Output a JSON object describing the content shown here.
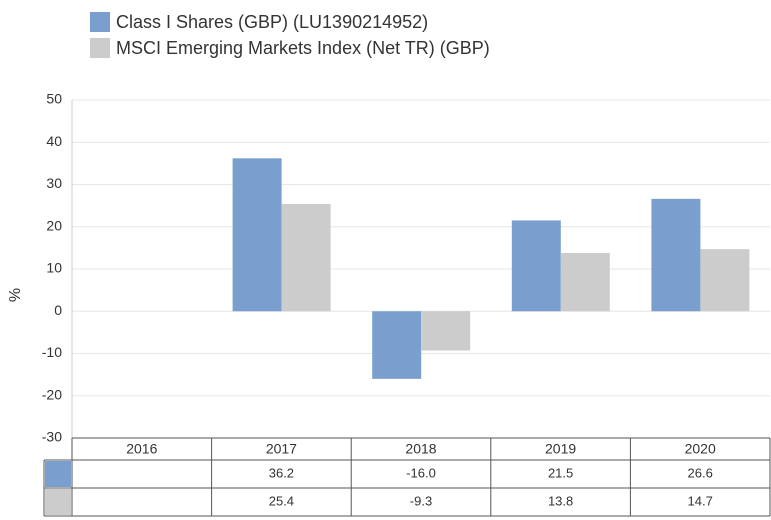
{
  "chart_data": {
    "type": "bar",
    "categories": [
      "2016",
      "2017",
      "2018",
      "2019",
      "2020"
    ],
    "series": [
      {
        "name": "Class I Shares (GBP) (LU1390214952)",
        "color": "#7a9fce",
        "values": [
          null,
          36.2,
          -16.0,
          21.5,
          26.6
        ],
        "value_labels": [
          null,
          "36.2",
          "-16.0",
          "21.5",
          "26.6"
        ]
      },
      {
        "name": "MSCI Emerging Markets Index (Net TR) (GBP)",
        "color": "#cccccc",
        "values": [
          null,
          25.4,
          -9.3,
          13.8,
          14.7
        ],
        "value_labels": [
          null,
          "25.4",
          "-9.3",
          "13.8",
          "14.7"
        ]
      }
    ],
    "ylabel": "%",
    "ylim": [
      -30,
      50
    ],
    "yticks": [
      -30,
      -20,
      -10,
      0,
      10,
      20,
      30,
      40,
      50
    ],
    "grid": true
  }
}
